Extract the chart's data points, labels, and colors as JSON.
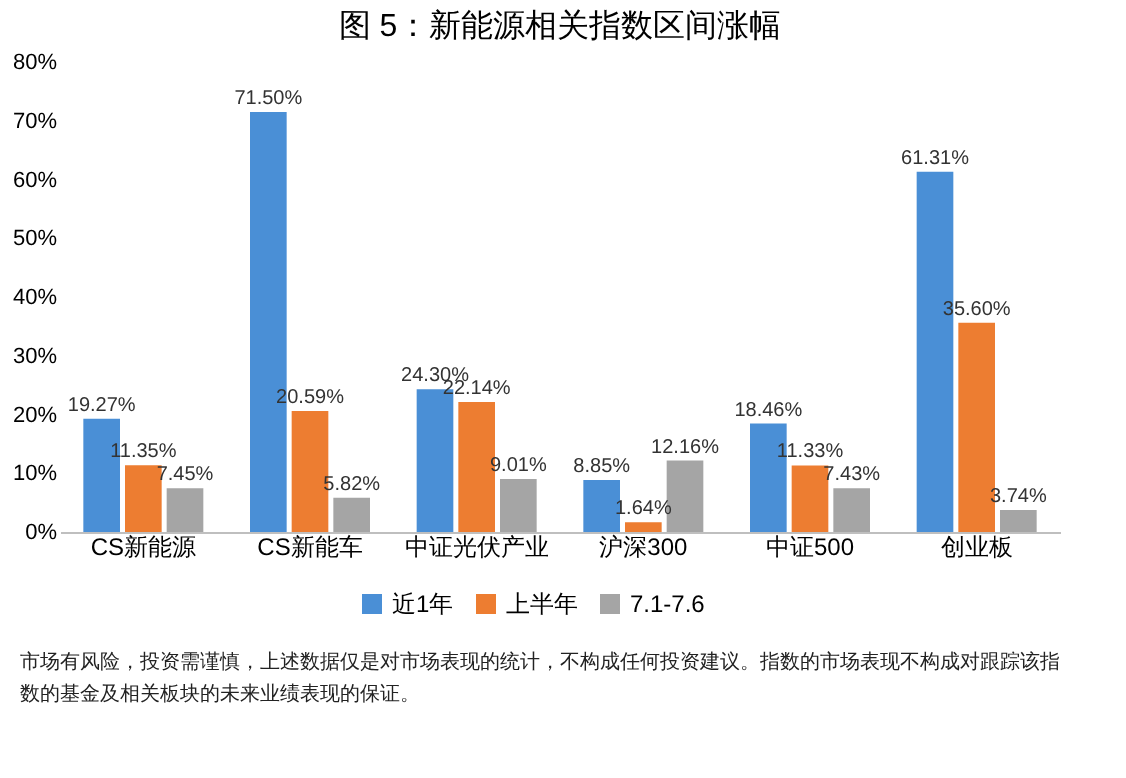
{
  "chart_data": {
    "type": "bar",
    "title": "图 5：新能源相关指数区间涨幅",
    "categories": [
      "CS新能源",
      "CS新能车",
      "中证光伏产业",
      "沪深300",
      "中证500",
      "创业板"
    ],
    "series": [
      {
        "name": "近1年",
        "color": "#4a8fd6",
        "values": [
          19.27,
          71.5,
          24.3,
          8.85,
          18.46,
          61.31
        ],
        "value_labels": [
          "19.27%",
          "71.50%",
          "24.30%",
          "8.85%",
          "18.46%",
          "61.31%"
        ]
      },
      {
        "name": "上半年",
        "color": "#ed7d31",
        "values": [
          11.35,
          20.59,
          22.14,
          1.64,
          11.33,
          35.6
        ],
        "value_labels": [
          "11.35%",
          "20.59%",
          "22.14%",
          "1.64%",
          "11.33%",
          "35.60%"
        ]
      },
      {
        "name": "7.1-7.6",
        "color": "#a5a5a5",
        "values": [
          7.45,
          5.82,
          9.01,
          12.16,
          7.43,
          3.74
        ],
        "value_labels": [
          "7.45%",
          "5.82%",
          "9.01%",
          "12.16%",
          "7.43%",
          "3.74%"
        ]
      }
    ],
    "ylim": [
      0,
      80
    ],
    "yticks": [
      {
        "value": 0,
        "label": "0%"
      },
      {
        "value": 10,
        "label": "10%"
      },
      {
        "value": 20,
        "label": "20%"
      },
      {
        "value": 30,
        "label": "30%"
      },
      {
        "value": 40,
        "label": "40%"
      },
      {
        "value": 50,
        "label": "50%"
      },
      {
        "value": 60,
        "label": "60%"
      },
      {
        "value": 70,
        "label": "70%"
      },
      {
        "value": 80,
        "label": "80%"
      }
    ],
    "grid": false,
    "legend": "bottom",
    "annotations": [
      "市场有风险，投资需谨慎，上述数据仅是对市场表现的统计，不构成任何投资建议。指数的市场表现不构成对跟踪该指数的基金及相关板块的未来业绩表现的保证。"
    ]
  }
}
